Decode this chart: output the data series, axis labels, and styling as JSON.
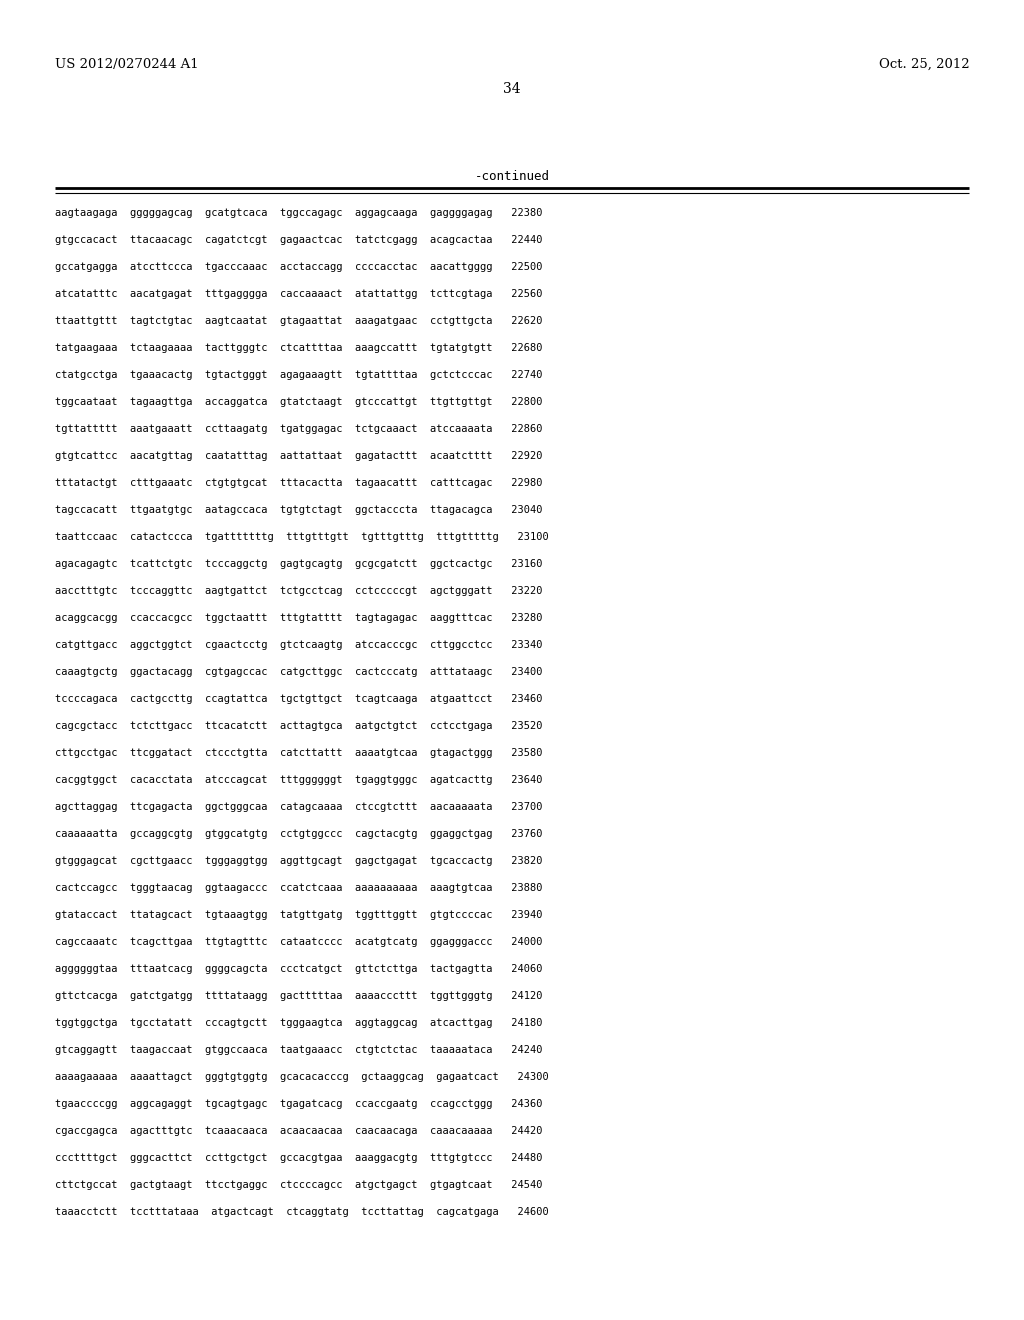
{
  "header_left": "US 2012/0270244 A1",
  "header_right": "Oct. 25, 2012",
  "page_number": "34",
  "continued_label": "-continued",
  "background_color": "#ffffff",
  "text_color": "#000000",
  "font_size": 7.5,
  "header_font_size": 9.5,
  "page_num_font_size": 10,
  "continued_font_size": 9,
  "sequence_lines": [
    "aagtaagaga  gggggagcag  gcatgtcaca  tggccagagc  aggagcaaga  gaggggagag   22380",
    "gtgccacact  ttacaacagc  cagatctcgt  gagaactcac  tatctcgagg  acagcactaa   22440",
    "gccatgagga  atccttccca  tgacccaaac  acctaccagg  ccccacctac  aacattgggg   22500",
    "atcatatttc  aacatgagat  tttgagggga  caccaaaact  atattattgg  tcttcgtaga   22560",
    "ttaattgttt  tagtctgtac  aagtcaatat  gtagaattat  aaagatgaac  cctgttgcta   22620",
    "tatgaagaaa  tctaagaaaa  tacttgggtc  ctcattttaa  aaagccattt  tgtatgtgtt   22680",
    "ctatgcctga  tgaaacactg  tgtactgggt  agagaaagtt  tgtattttaa  gctctcccac   22740",
    "tggcaataat  tagaagttga  accaggatca  gtatctaagt  gtcccattgt  ttgttgttgt   22800",
    "tgttattttt  aaatgaaatt  ccttaagatg  tgatggagac  tctgcaaact  atccaaaata   22860",
    "gtgtcattcc  aacatgttag  caatatttag  aattattaat  gagatacttt  acaatctttt   22920",
    "tttatactgt  ctttgaaatc  ctgtgtgcat  tttacactta  tagaacattt  catttcagac   22980",
    "tagccacatt  ttgaatgtgc  aatagccaca  tgtgtctagt  ggctacccta  ttagacagca   23040",
    "taattccaac  catactccca  tgatttttttg  tttgtttgtt  tgtttgtttg  tttgtttttg   23100",
    "agacagagtc  tcattctgtc  tcccaggctg  gagtgcagtg  gcgcgatctt  ggctcactgc   23160",
    "aacctttgtc  tcccaggttc  aagtgattct  tctgcctcag  cctcccccgt  agctgggatt   23220",
    "acaggcacgg  ccaccacgcc  tggctaattt  tttgtatttt  tagtagagac  aaggtttcac   23280",
    "catgttgacc  aggctggtct  cgaactcctg  gtctcaagtg  atccacccgc  cttggcctcc   23340",
    "caaagtgctg  ggactacagg  cgtgagccac  catgcttggc  cactcccatg  atttataagc   23400",
    "tccccagaca  cactgccttg  ccagtattca  tgctgttgct  tcagtcaaga  atgaattcct   23460",
    "cagcgctacc  tctcttgacc  ttcacatctt  acttagtgca  aatgctgtct  cctcctgaga   23520",
    "cttgcctgac  ttcggatact  ctccctgtta  catcttattt  aaaatgtcaa  gtagactggg   23580",
    "cacggtggct  cacacctata  atcccagcat  tttggggggt  tgaggtgggc  agatcacttg   23640",
    "agcttaggag  ttcgagacta  ggctgggcaa  catagcaaaa  ctccgtcttt  aacaaaaata   23700",
    "caaaaaatta  gccaggcgtg  gtggcatgtg  cctgtggccc  cagctacgtg  ggaggctgag   23760",
    "gtgggagcat  cgcttgaacc  tgggaggtgg  aggttgcagt  gagctgagat  tgcaccactg   23820",
    "cactccagcc  tgggtaacag  ggtaagaccc  ccatctcaaa  aaaaaaaaaa  aaagtgtcaa   23880",
    "gtataccact  ttatagcact  tgtaaagtgg  tatgttgatg  tggtttggtt  gtgtccccac   23940",
    "cagccaaatc  tcagcttgaa  ttgtagtttc  cataatcccc  acatgtcatg  ggagggaccc   24000",
    "aggggggtaa  tttaatcacg  ggggcagcta  ccctcatgct  gttctcttga  tactgagtta   24060",
    "gttctcacga  gatctgatgg  ttttataagg  gactttttaa  aaaacccttt  tggttgggtg   24120",
    "tggtggctga  tgcctatatt  cccagtgctt  tgggaagtca  aggtaggcag  atcacttgag   24180",
    "gtcaggagtt  taagaccaat  gtggccaaca  taatgaaacc  ctgtctctac  taaaaataca   24240",
    "aaaagaaaaa  aaaattagct  gggtgtggtg  gcacacacccg  gctaaggcag  gagaatcact   24300",
    "tgaaccccgg  aggcagaggt  tgcagtgagc  tgagatcacg  ccaccgaatg  ccagcctggg   24360",
    "cgaccgagca  agactttgtc  tcaaacaaca  acaacaacaa  caacaacaga  caaacaaaaa   24420",
    "cccttttgct  gggcacttct  ccttgctgct  gccacgtgaa  aaaggacgtg  tttgtgtccc   24480",
    "cttctgccat  gactgtaagt  ttcctgaggc  ctccccagcc  atgctgagct  gtgagtcaat   24540",
    "taaacctctt  tcctttataaa  atgactcagt  ctcaggtatg  tccttattag  cagcatgaga   24600"
  ]
}
